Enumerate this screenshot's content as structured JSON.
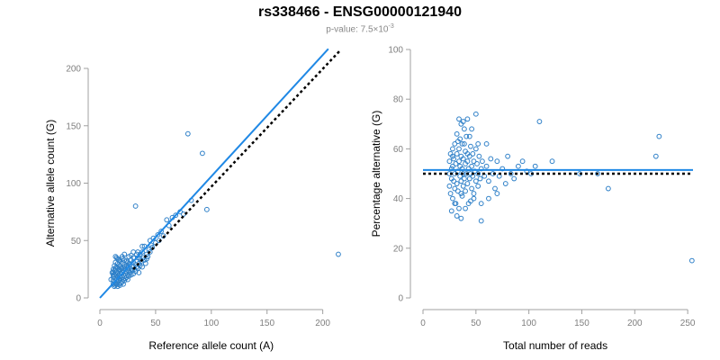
{
  "header": {
    "title": "rs338466 - ENSG00000121940",
    "pvalue_prefix": "p-value: 7.5×10",
    "pvalue_exp": "-3"
  },
  "colors": {
    "points": "#2f80c8",
    "fit": "#1f88e5",
    "reference": "#000000",
    "axis": "#a0a0a0",
    "tick_text": "#7f7f7f"
  },
  "chart_data": [
    {
      "type": "scatter",
      "xlabel": "Reference allele count (A)",
      "ylabel": "Alternative allele count (G)",
      "xlim": [
        0,
        210
      ],
      "ylim": [
        0,
        200
      ],
      "xticks": [
        0,
        50,
        100,
        150,
        200
      ],
      "yticks": [
        0,
        50,
        100,
        150,
        200
      ],
      "fit_line": {
        "style": "solid",
        "from": [
          0,
          0
        ],
        "to": [
          205,
          217
        ]
      },
      "reference_line": {
        "style": "dotted",
        "from": [
          30,
          25
        ],
        "to": [
          215,
          215
        ]
      },
      "points": [
        [
          12,
          12
        ],
        [
          12,
          15
        ],
        [
          12,
          18
        ],
        [
          12,
          22
        ],
        [
          12,
          25
        ],
        [
          13,
          10
        ],
        [
          13,
          14
        ],
        [
          13,
          20
        ],
        [
          13,
          24
        ],
        [
          13,
          28
        ],
        [
          14,
          11
        ],
        [
          14,
          13
        ],
        [
          14,
          17
        ],
        [
          14,
          21
        ],
        [
          14,
          26
        ],
        [
          14,
          31
        ],
        [
          15,
          12
        ],
        [
          15,
          16
        ],
        [
          15,
          19
        ],
        [
          15,
          23
        ],
        [
          15,
          27
        ],
        [
          15,
          35
        ],
        [
          16,
          10
        ],
        [
          16,
          14
        ],
        [
          16,
          18
        ],
        [
          16,
          22
        ],
        [
          16,
          30
        ],
        [
          17,
          12
        ],
        [
          17,
          15
        ],
        [
          17,
          20
        ],
        [
          17,
          25
        ],
        [
          17,
          33
        ],
        [
          18,
          11
        ],
        [
          18,
          16
        ],
        [
          18,
          19
        ],
        [
          18,
          24
        ],
        [
          18,
          28
        ],
        [
          19,
          13
        ],
        [
          19,
          17
        ],
        [
          19,
          21
        ],
        [
          19,
          26
        ],
        [
          20,
          14
        ],
        [
          20,
          18
        ],
        [
          20,
          22
        ],
        [
          20,
          30
        ],
        [
          20,
          36
        ],
        [
          21,
          12
        ],
        [
          21,
          16
        ],
        [
          21,
          24
        ],
        [
          22,
          15
        ],
        [
          22,
          19
        ],
        [
          22,
          27
        ],
        [
          22,
          33
        ],
        [
          23,
          17
        ],
        [
          23,
          21
        ],
        [
          23,
          25
        ],
        [
          24,
          18
        ],
        [
          24,
          23
        ],
        [
          24,
          28
        ],
        [
          25,
          16
        ],
        [
          25,
          20
        ],
        [
          25,
          26
        ],
        [
          25,
          31
        ],
        [
          26,
          19
        ],
        [
          26,
          24
        ],
        [
          27,
          22
        ],
        [
          27,
          29
        ],
        [
          28,
          20
        ],
        [
          28,
          25
        ],
        [
          28,
          33
        ],
        [
          29,
          24
        ],
        [
          30,
          21
        ],
        [
          30,
          27
        ],
        [
          30,
          35
        ],
        [
          31,
          25
        ],
        [
          32,
          23
        ],
        [
          32,
          29
        ],
        [
          33,
          27
        ],
        [
          33,
          38
        ],
        [
          34,
          26
        ],
        [
          35,
          22
        ],
        [
          35,
          30
        ],
        [
          36,
          28
        ],
        [
          36,
          34
        ],
        [
          37,
          32
        ],
        [
          38,
          27
        ],
        [
          38,
          40
        ],
        [
          39,
          35
        ],
        [
          40,
          33
        ],
        [
          41,
          30
        ],
        [
          42,
          38
        ],
        [
          43,
          36
        ],
        [
          44,
          42
        ],
        [
          45,
          40
        ],
        [
          46,
          46
        ],
        [
          47,
          44
        ],
        [
          48,
          52
        ],
        [
          50,
          48
        ],
        [
          52,
          55
        ],
        [
          53,
          50
        ],
        [
          55,
          58
        ],
        [
          57,
          54
        ],
        [
          60,
          68
        ],
        [
          62,
          63
        ],
        [
          65,
          70
        ],
        [
          68,
          72
        ],
        [
          72,
          75
        ],
        [
          75,
          73
        ],
        [
          79,
          143
        ],
        [
          82,
          85
        ],
        [
          92,
          126
        ],
        [
          96,
          77
        ],
        [
          32,
          80
        ],
        [
          40,
          45
        ],
        [
          45,
          50
        ],
        [
          38,
          45
        ],
        [
          42,
          34
        ],
        [
          36,
          38
        ],
        [
          34,
          40
        ],
        [
          30,
          40
        ],
        [
          26,
          36
        ],
        [
          24,
          32
        ],
        [
          22,
          38
        ],
        [
          20,
          26
        ],
        [
          18,
          32
        ],
        [
          16,
          26
        ],
        [
          14,
          36
        ],
        [
          12,
          20
        ],
        [
          10,
          16
        ],
        [
          11,
          22
        ],
        [
          14,
          24
        ],
        [
          16,
          34
        ],
        [
          20,
          34
        ],
        [
          22,
          29
        ],
        [
          26,
          30
        ],
        [
          28,
          37
        ],
        [
          30,
          31
        ],
        [
          34,
          35
        ],
        [
          214,
          38
        ]
      ]
    },
    {
      "type": "scatter",
      "xlabel": "Total number of reads",
      "ylabel": "Percentage alternative (G)",
      "xlim": [
        0,
        255
      ],
      "ylim": [
        0,
        100
      ],
      "xticks": [
        0,
        50,
        100,
        150,
        200,
        250
      ],
      "yticks": [
        0,
        20,
        40,
        60,
        80,
        100
      ],
      "fit_line": {
        "style": "solid",
        "y": 51.5
      },
      "reference_line": {
        "style": "dotted",
        "y": 50
      },
      "points": [
        [
          25,
          50
        ],
        [
          25,
          55
        ],
        [
          25,
          45
        ],
        [
          26,
          58
        ],
        [
          26,
          42
        ],
        [
          27,
          52
        ],
        [
          27,
          48
        ],
        [
          28,
          60
        ],
        [
          28,
          40
        ],
        [
          28,
          53
        ],
        [
          29,
          47
        ],
        [
          29,
          56
        ],
        [
          30,
          44
        ],
        [
          30,
          50
        ],
        [
          30,
          62
        ],
        [
          31,
          38
        ],
        [
          31,
          54
        ],
        [
          32,
          46
        ],
        [
          32,
          58
        ],
        [
          32,
          66
        ],
        [
          33,
          51
        ],
        [
          33,
          43
        ],
        [
          34,
          55
        ],
        [
          34,
          60
        ],
        [
          34,
          36
        ],
        [
          35,
          49
        ],
        [
          35,
          64
        ],
        [
          35,
          53
        ],
        [
          36,
          47
        ],
        [
          36,
          57
        ],
        [
          36,
          70
        ],
        [
          37,
          41
        ],
        [
          37,
          52
        ],
        [
          37,
          62
        ],
        [
          38,
          45
        ],
        [
          38,
          56
        ],
        [
          38,
          50
        ],
        [
          39,
          68
        ],
        [
          39,
          48
        ],
        [
          40,
          54
        ],
        [
          40,
          43
        ],
        [
          40,
          59
        ],
        [
          41,
          50
        ],
        [
          41,
          65
        ],
        [
          42,
          46
        ],
        [
          42,
          55
        ],
        [
          43,
          52
        ],
        [
          43,
          38
        ],
        [
          44,
          57
        ],
        [
          44,
          48
        ],
        [
          45,
          50
        ],
        [
          45,
          61
        ],
        [
          46,
          44
        ],
        [
          46,
          53
        ],
        [
          47,
          49
        ],
        [
          47,
          58
        ],
        [
          48,
          42
        ],
        [
          48,
          55
        ],
        [
          49,
          51
        ],
        [
          50,
          47
        ],
        [
          50,
          60
        ],
        [
          51,
          54
        ],
        [
          52,
          45
        ],
        [
          52,
          50
        ],
        [
          53,
          57
        ],
        [
          54,
          48
        ],
        [
          55,
          52
        ],
        [
          55,
          31
        ],
        [
          56,
          55
        ],
        [
          58,
          49
        ],
        [
          60,
          53
        ],
        [
          62,
          47
        ],
        [
          64,
          56
        ],
        [
          66,
          50
        ],
        [
          68,
          44
        ],
        [
          70,
          55
        ],
        [
          72,
          49
        ],
        [
          75,
          52
        ],
        [
          78,
          46
        ],
        [
          80,
          57
        ],
        [
          83,
          50
        ],
        [
          86,
          48
        ],
        [
          90,
          53
        ],
        [
          94,
          55
        ],
        [
          98,
          51
        ],
        [
          102,
          50
        ],
        [
          106,
          53
        ],
        [
          110,
          71
        ],
        [
          122,
          55
        ],
        [
          148,
          50
        ],
        [
          165,
          50
        ],
        [
          175,
          44
        ],
        [
          220,
          57
        ],
        [
          223,
          65
        ],
        [
          254,
          15
        ],
        [
          36,
          32
        ],
        [
          38,
          71
        ],
        [
          42,
          72
        ],
        [
          44,
          65
        ],
        [
          32,
          33
        ],
        [
          50,
          74
        ],
        [
          48,
          40
        ],
        [
          30,
          38
        ],
        [
          27,
          35
        ],
        [
          60,
          62
        ],
        [
          52,
          62
        ],
        [
          46,
          68
        ],
        [
          40,
          36
        ],
        [
          34,
          72
        ],
        [
          42,
          58
        ],
        [
          36,
          42
        ],
        [
          39,
          62
        ],
        [
          28,
          57
        ],
        [
          33,
          63
        ],
        [
          55,
          38
        ],
        [
          62,
          40
        ],
        [
          70,
          42
        ],
        [
          45,
          39
        ]
      ]
    }
  ]
}
